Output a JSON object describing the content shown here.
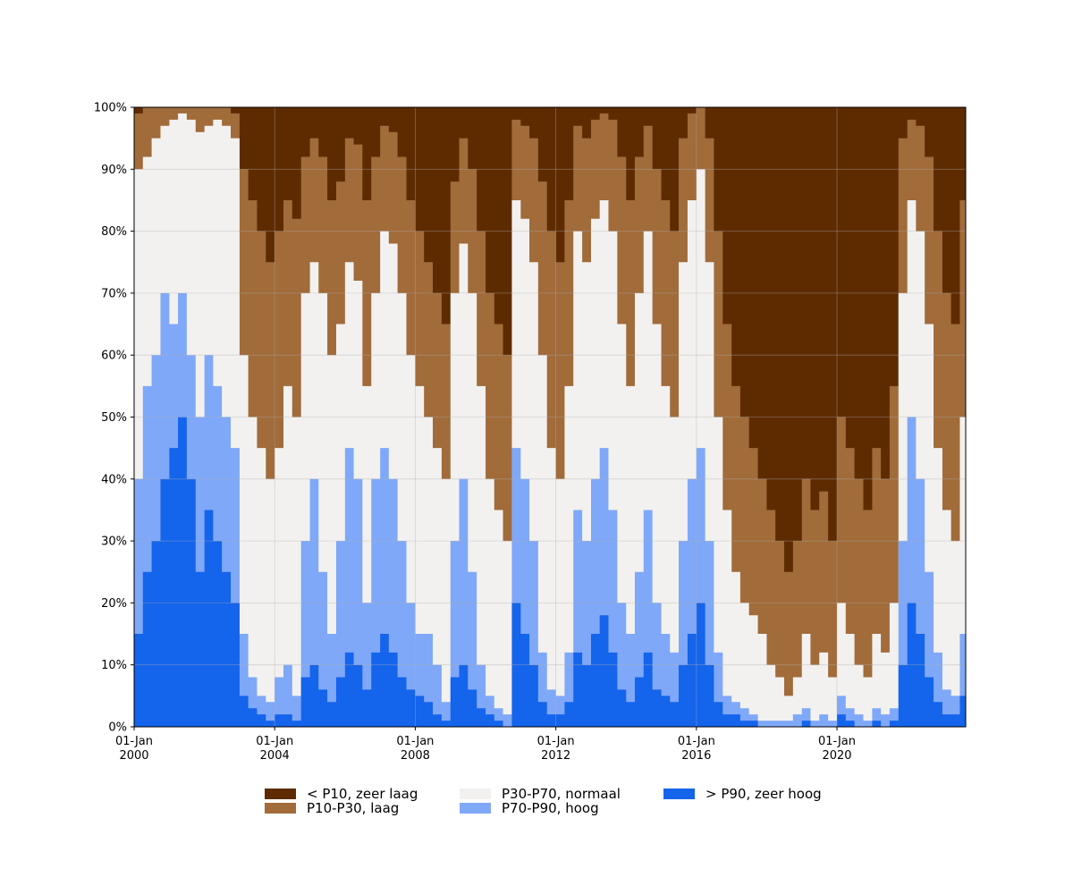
{
  "chart_data": {
    "type": "area",
    "stacked": true,
    "normalized_percent": true,
    "x_axis": {
      "type": "date",
      "range": [
        "2000-01-01",
        "2023-08-31"
      ],
      "ticks": [
        {
          "date": "2000-01-01",
          "label_line1": "01-Jan",
          "label_line2": "2000"
        },
        {
          "date": "2004-01-01",
          "label_line1": "01-Jan",
          "label_line2": "2004"
        },
        {
          "date": "2008-01-01",
          "label_line1": "01-Jan",
          "label_line2": "2008"
        },
        {
          "date": "2012-01-01",
          "label_line1": "01-Jan",
          "label_line2": "2012"
        },
        {
          "date": "2016-01-01",
          "label_line1": "01-Jan",
          "label_line2": "2016"
        },
        {
          "date": "2020-01-01",
          "label_line1": "01-Jan",
          "label_line2": "2020"
        }
      ]
    },
    "y_axis": {
      "range": [
        0,
        100
      ],
      "ticks": [
        {
          "value": 0,
          "label": "0%"
        },
        {
          "value": 10,
          "label": "10%"
        },
        {
          "value": 20,
          "label": "20%"
        },
        {
          "value": 30,
          "label": "30%"
        },
        {
          "value": 40,
          "label": "40%"
        },
        {
          "value": 50,
          "label": "50%"
        },
        {
          "value": 60,
          "label": "60%"
        },
        {
          "value": 70,
          "label": "70%"
        },
        {
          "value": 80,
          "label": "80%"
        },
        {
          "value": 90,
          "label": "90%"
        },
        {
          "value": 100,
          "label": "100%"
        }
      ]
    },
    "grid": true,
    "legend_placement": "bottom-center",
    "series": [
      {
        "name": "> P90, zeer hoog",
        "color": "#1464ec"
      },
      {
        "name": "P70-P90, hoog",
        "color": "#7fa8f8"
      },
      {
        "name": "P30-P70, normaal",
        "color": "#f2f1ef"
      },
      {
        "name": "P10-P30, laag",
        "color": "#a16b3a"
      },
      {
        "name": "< P10, zeer laag",
        "color": "#5e2b00"
      }
    ],
    "dates": [
      "2000-01-01",
      "2000-04-01",
      "2000-07-01",
      "2000-10-01",
      "2001-01-01",
      "2001-04-01",
      "2001-07-01",
      "2001-10-01",
      "2002-01-01",
      "2002-04-01",
      "2002-07-01",
      "2002-10-01",
      "2003-01-01",
      "2003-04-01",
      "2003-07-01",
      "2003-10-01",
      "2004-01-01",
      "2004-04-01",
      "2004-07-01",
      "2004-10-01",
      "2005-01-01",
      "2005-04-01",
      "2005-07-01",
      "2005-10-01",
      "2006-01-01",
      "2006-04-01",
      "2006-07-01",
      "2006-10-01",
      "2007-01-01",
      "2007-04-01",
      "2007-07-01",
      "2007-10-01",
      "2008-01-01",
      "2008-04-01",
      "2008-07-01",
      "2008-10-01",
      "2009-01-01",
      "2009-04-01",
      "2009-07-01",
      "2009-10-01",
      "2010-01-01",
      "2010-04-01",
      "2010-07-01",
      "2010-10-01",
      "2011-01-01",
      "2011-04-01",
      "2011-07-01",
      "2011-10-01",
      "2012-01-01",
      "2012-04-01",
      "2012-07-01",
      "2012-10-01",
      "2013-01-01",
      "2013-04-01",
      "2013-07-01",
      "2013-10-01",
      "2014-01-01",
      "2014-04-01",
      "2014-07-01",
      "2014-10-01",
      "2015-01-01",
      "2015-04-01",
      "2015-07-01",
      "2015-10-01",
      "2016-01-01",
      "2016-04-01",
      "2016-07-01",
      "2016-10-01",
      "2017-01-01",
      "2017-04-01",
      "2017-07-01",
      "2017-10-01",
      "2018-01-01",
      "2018-04-01",
      "2018-07-01",
      "2018-10-01",
      "2019-01-01",
      "2019-04-01",
      "2019-07-01",
      "2019-10-01",
      "2020-01-01",
      "2020-04-01",
      "2020-07-01",
      "2020-10-01",
      "2021-01-01",
      "2021-04-01",
      "2021-07-01",
      "2021-10-01",
      "2022-01-01",
      "2022-04-01",
      "2022-07-01",
      "2022-10-01",
      "2023-01-01",
      "2023-04-01",
      "2023-07-01"
    ],
    "cumulative_boundaries_percent": {
      "top_of_zeer_hoog": [
        15,
        25,
        30,
        40,
        45,
        50,
        40,
        25,
        35,
        30,
        25,
        20,
        5,
        3,
        2,
        1,
        2,
        2,
        1,
        8,
        10,
        6,
        4,
        8,
        12,
        10,
        6,
        12,
        15,
        12,
        8,
        6,
        5,
        4,
        2,
        1,
        8,
        10,
        6,
        3,
        2,
        1,
        0,
        20,
        15,
        10,
        4,
        2,
        2,
        4,
        12,
        10,
        15,
        18,
        12,
        6,
        4,
        8,
        12,
        6,
        5,
        4,
        10,
        15,
        20,
        10,
        4,
        2,
        2,
        1,
        1,
        0,
        0,
        0,
        0,
        0,
        1,
        0,
        0,
        0,
        2,
        1,
        0,
        0,
        1,
        0,
        1,
        10,
        20,
        15,
        8,
        4,
        2,
        2,
        5
      ],
      "top_of_hoog": [
        40,
        55,
        60,
        70,
        65,
        70,
        60,
        50,
        60,
        55,
        50,
        45,
        15,
        8,
        5,
        4,
        8,
        10,
        5,
        30,
        40,
        25,
        15,
        30,
        45,
        40,
        20,
        40,
        45,
        40,
        30,
        20,
        15,
        15,
        10,
        4,
        30,
        40,
        25,
        10,
        5,
        3,
        2,
        45,
        40,
        30,
        12,
        6,
        5,
        12,
        35,
        30,
        40,
        45,
        35,
        20,
        15,
        25,
        35,
        20,
        15,
        12,
        30,
        40,
        45,
        30,
        12,
        5,
        4,
        3,
        2,
        1,
        1,
        1,
        1,
        2,
        3,
        1,
        2,
        1,
        5,
        3,
        2,
        1,
        3,
        2,
        3,
        30,
        50,
        40,
        25,
        12,
        6,
        5,
        15
      ],
      "top_of_normaal": [
        90,
        92,
        95,
        97,
        98,
        99,
        98,
        96,
        97,
        98,
        97,
        95,
        60,
        50,
        45,
        40,
        45,
        55,
        50,
        70,
        75,
        70,
        60,
        65,
        75,
        72,
        55,
        70,
        80,
        78,
        70,
        60,
        55,
        50,
        45,
        40,
        70,
        78,
        70,
        55,
        40,
        35,
        30,
        85,
        82,
        75,
        60,
        45,
        40,
        55,
        80,
        75,
        82,
        85,
        80,
        65,
        55,
        70,
        80,
        65,
        55,
        50,
        75,
        85,
        90,
        75,
        50,
        35,
        25,
        20,
        18,
        15,
        10,
        8,
        5,
        8,
        15,
        10,
        12,
        8,
        20,
        15,
        10,
        8,
        15,
        12,
        20,
        70,
        85,
        80,
        65,
        45,
        35,
        30,
        50
      ],
      "top_of_laag": [
        99,
        100,
        100,
        100,
        100,
        100,
        100,
        100,
        100,
        100,
        100,
        99,
        90,
        85,
        80,
        75,
        80,
        85,
        82,
        92,
        95,
        92,
        85,
        88,
        95,
        94,
        85,
        92,
        97,
        96,
        92,
        85,
        80,
        75,
        70,
        65,
        88,
        95,
        90,
        80,
        70,
        65,
        60,
        98,
        97,
        95,
        88,
        80,
        75,
        85,
        97,
        95,
        98,
        99,
        98,
        92,
        85,
        92,
        97,
        90,
        85,
        80,
        95,
        99,
        100,
        95,
        80,
        65,
        55,
        50,
        45,
        40,
        35,
        30,
        25,
        30,
        40,
        35,
        38,
        30,
        50,
        45,
        40,
        35,
        45,
        40,
        55,
        95,
        98,
        97,
        92,
        80,
        70,
        65,
        85
      ]
    }
  }
}
